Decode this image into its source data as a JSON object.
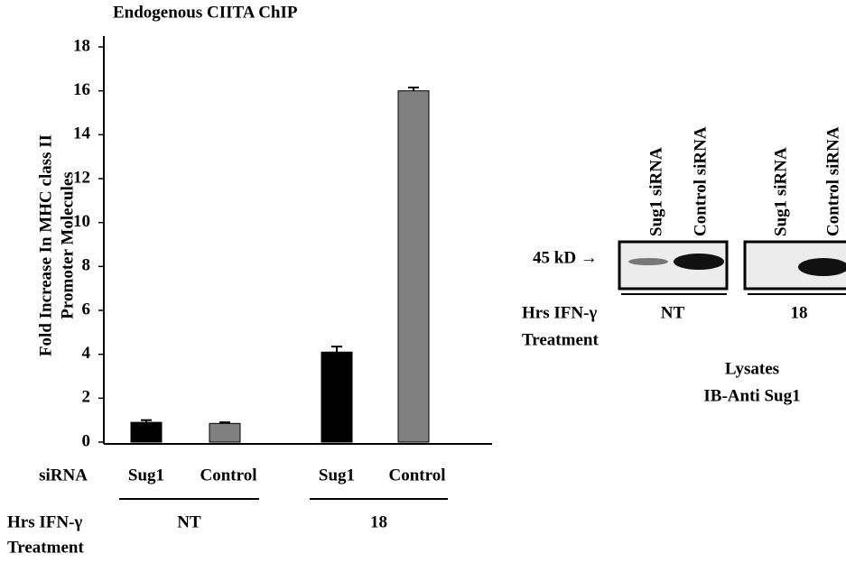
{
  "chart_data": {
    "type": "bar",
    "title": "Endogenous CIITA ChIP",
    "y_label": [
      "Fold Increase In MHC class II",
      "Promoter Molecules"
    ],
    "x_label": "siRNA",
    "categories": [
      "Sug1",
      "Control",
      "Sug1",
      "Control"
    ],
    "values": [
      0.9,
      0.85,
      4.1,
      16.0
    ],
    "errors": [
      0.1,
      0.05,
      0.25,
      0.15
    ],
    "colors": [
      "#000000",
      "#808080",
      "#000000",
      "#808080"
    ],
    "groups": [
      "NT",
      "18"
    ],
    "group_title": [
      "Hrs IFN-γ",
      "Treatment"
    ],
    "ylim": [
      0,
      18
    ],
    "yticks": [
      0,
      2,
      4,
      6,
      8,
      10,
      12,
      14,
      16,
      18
    ]
  },
  "blot": {
    "lanes": [
      "Sug1 siRNA",
      "Control siRNA",
      "Sug1 siRNA",
      "Control siRNA"
    ],
    "marker": "45 kD →",
    "groups": [
      "NT",
      "18"
    ],
    "group_title": [
      "Hrs IFN-γ",
      "Treatment"
    ],
    "caption": [
      "Lysates",
      "IB-Anti Sug1"
    ]
  }
}
